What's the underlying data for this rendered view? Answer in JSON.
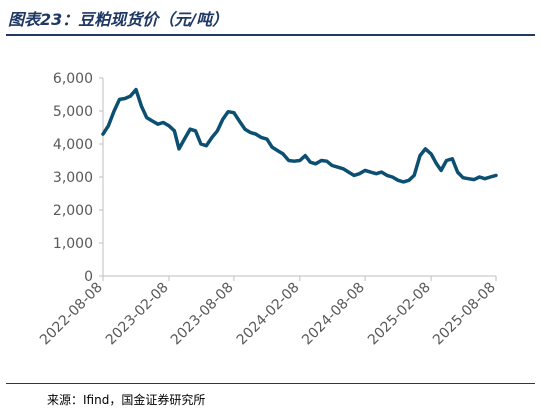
{
  "figure": {
    "title": "图表23：豆粕现货价（元/吨）",
    "source": "来源：Ifind，国金证券研究所"
  },
  "colors": {
    "line": "#0b4f72",
    "title": "#1f3864",
    "axis": "#bfbfbf",
    "text": "#595959"
  },
  "chart_data": {
    "type": "line",
    "title": "豆粕现货价（元/吨）",
    "xlabel": "",
    "ylabel": "",
    "ylim": [
      0,
      6000
    ],
    "yticks": [
      0,
      1000,
      2000,
      3000,
      4000,
      5000,
      6000
    ],
    "ytick_labels": [
      "0",
      "1,000",
      "2,000",
      "3,000",
      "4,000",
      "5,000",
      "6,000"
    ],
    "xtick_labels": [
      "2022-08-08",
      "2023-02-08",
      "2023-08-08",
      "2024-02-08",
      "2024-08-08",
      "2025-02-08",
      "2025-08-08"
    ],
    "xlim": [
      "2022-08-08",
      "2025-08-08"
    ],
    "grid": false,
    "legend": "none",
    "series": [
      {
        "x": [
          "2022-08-08",
          "2022-08-23",
          "2022-09-08",
          "2022-09-23",
          "2022-10-08",
          "2022-10-23",
          "2022-11-08",
          "2022-11-23",
          "2022-12-08",
          "2022-12-23",
          "2023-01-08",
          "2023-01-23",
          "2023-02-08",
          "2023-02-23",
          "2023-03-08",
          "2023-03-23",
          "2023-04-08",
          "2023-04-23",
          "2023-05-08",
          "2023-05-23",
          "2023-06-08",
          "2023-06-23",
          "2023-07-08",
          "2023-07-23",
          "2023-08-08",
          "2023-08-23",
          "2023-09-08",
          "2023-09-23",
          "2023-10-08",
          "2023-10-23",
          "2023-11-08",
          "2023-11-23",
          "2023-12-08",
          "2023-12-23",
          "2024-01-08",
          "2024-01-23",
          "2024-02-08",
          "2024-02-23",
          "2024-03-08",
          "2024-03-23",
          "2024-04-08",
          "2024-04-23",
          "2024-05-08",
          "2024-05-23",
          "2024-06-08",
          "2024-06-23",
          "2024-07-08",
          "2024-07-23",
          "2024-08-08",
          "2024-08-23",
          "2024-09-08",
          "2024-09-23",
          "2024-10-08",
          "2024-10-23",
          "2024-11-08",
          "2024-11-23",
          "2024-12-08",
          "2024-12-23",
          "2025-01-08",
          "2025-01-23",
          "2025-02-08",
          "2025-02-23",
          "2025-03-08",
          "2025-03-23",
          "2025-04-08",
          "2025-04-23",
          "2025-05-08",
          "2025-05-23",
          "2025-06-08",
          "2025-06-23",
          "2025-07-08",
          "2025-07-23",
          "2025-08-08"
        ],
        "values": [
          4300,
          4550,
          5000,
          5350,
          5380,
          5450,
          5650,
          5150,
          4800,
          4700,
          4600,
          4650,
          4550,
          4400,
          3850,
          4150,
          4450,
          4400,
          4000,
          3950,
          4200,
          4400,
          4750,
          4980,
          4950,
          4700,
          4450,
          4350,
          4300,
          4200,
          4150,
          3900,
          3800,
          3700,
          3500,
          3480,
          3500,
          3650,
          3450,
          3400,
          3500,
          3480,
          3350,
          3300,
          3250,
          3150,
          3050,
          3100,
          3200,
          3150,
          3100,
          3150,
          3050,
          3000,
          2900,
          2850,
          2900,
          3050,
          3650,
          3850,
          3700,
          3400,
          3200,
          3500,
          3550,
          3150,
          2980,
          2950,
          2920,
          3000,
          2950,
          3000,
          3050
        ]
      }
    ]
  }
}
